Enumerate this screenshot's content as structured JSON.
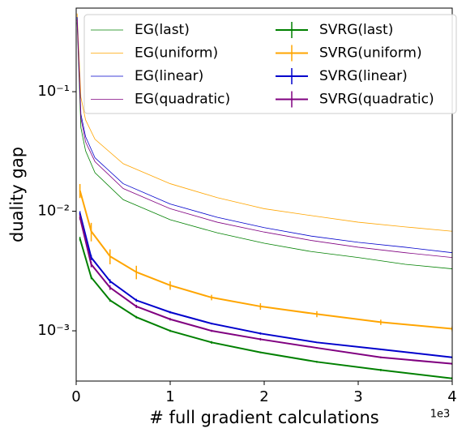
{
  "chart_data": {
    "type": "line",
    "xlabel": "# full gradient calculations",
    "ylabel": "duality gap",
    "x_offset_label": "1e3",
    "xlim": [
      0,
      4
    ],
    "xticks": [
      0,
      1,
      2,
      3,
      4
    ],
    "ylim": [
      0.00038,
      0.5
    ],
    "y_log_scale": true,
    "yticks": [
      {
        "value": 0.1,
        "label": "10⁻¹"
      },
      {
        "value": 0.01,
        "label": "10⁻²"
      },
      {
        "value": 0.001,
        "label": "10⁻³"
      }
    ],
    "legend": "upper right",
    "legend_columns": 2,
    "series": [
      {
        "name": "EG(last)",
        "color": "green",
        "style": "thin",
        "x": [
          0.01,
          0.05,
          0.1,
          0.2,
          0.5,
          1,
          1.5,
          2,
          2.5,
          3,
          3.5,
          4
        ],
        "values": [
          0.38,
          0.05,
          0.032,
          0.021,
          0.0125,
          0.0085,
          0.0066,
          0.0054,
          0.0046,
          0.0041,
          0.0036,
          0.0033
        ]
      },
      {
        "name": "EG(uniform)",
        "color": "orange",
        "style": "thin",
        "x": [
          0.01,
          0.05,
          0.1,
          0.2,
          0.5,
          1,
          1.5,
          2,
          2.5,
          3,
          3.5,
          4
        ],
        "values": [
          0.45,
          0.09,
          0.058,
          0.04,
          0.025,
          0.017,
          0.013,
          0.0105,
          0.0092,
          0.0081,
          0.0074,
          0.0068
        ]
      },
      {
        "name": "EG(linear)",
        "color": "#0000cc",
        "style": "thin",
        "x": [
          0.01,
          0.05,
          0.1,
          0.2,
          0.5,
          1,
          1.5,
          2,
          2.5,
          3,
          3.5,
          4
        ],
        "values": [
          0.42,
          0.065,
          0.042,
          0.028,
          0.017,
          0.0115,
          0.0089,
          0.0073,
          0.0062,
          0.0055,
          0.005,
          0.0045
        ]
      },
      {
        "name": "EG(quadratic)",
        "color": "purple",
        "style": "thin",
        "x": [
          0.01,
          0.05,
          0.1,
          0.2,
          0.5,
          1,
          1.5,
          2,
          2.5,
          3,
          3.5,
          4
        ],
        "values": [
          0.4,
          0.06,
          0.038,
          0.026,
          0.0155,
          0.0105,
          0.0081,
          0.0067,
          0.0057,
          0.005,
          0.0045,
          0.0041
        ]
      },
      {
        "name": "SVRG(last)",
        "color": "green",
        "style": "errorbar",
        "x": [
          0.04,
          0.16,
          0.36,
          0.64,
          1,
          1.44,
          1.96,
          2.56,
          3.24,
          4
        ],
        "values": [
          0.0059,
          0.0028,
          0.0018,
          0.0013,
          0.001,
          0.0008,
          0.00066,
          0.00055,
          0.00047,
          0.0004
        ],
        "errors": [
          0.0002,
          0.0001,
          5e-05,
          3e-05,
          2e-05,
          2e-05,
          1e-05,
          1e-05,
          1e-05,
          1e-05
        ]
      },
      {
        "name": "SVRG(uniform)",
        "color": "orange",
        "style": "errorbar",
        "x": [
          0.04,
          0.16,
          0.36,
          0.64,
          1,
          1.44,
          1.96,
          2.56,
          3.24,
          4
        ],
        "values": [
          0.0149,
          0.0068,
          0.0042,
          0.0031,
          0.0024,
          0.0019,
          0.0016,
          0.00138,
          0.00118,
          0.00104
        ],
        "errors": [
          0.002,
          0.0012,
          0.0006,
          0.0004,
          0.0002,
          0.0001,
          0.0001,
          8e-05,
          6e-05,
          5e-05
        ]
      },
      {
        "name": "SVRG(linear)",
        "color": "#0000cc",
        "style": "errorbar",
        "x": [
          0.04,
          0.16,
          0.36,
          0.64,
          1,
          1.44,
          1.96,
          2.56,
          3.24,
          4
        ],
        "values": [
          0.0096,
          0.0041,
          0.0026,
          0.0018,
          0.00143,
          0.00115,
          0.00095,
          0.0008,
          0.0007,
          0.0006
        ],
        "errors": [
          0.0004,
          0.0002,
          0.0001,
          5e-05,
          3e-05,
          2e-05,
          2e-05,
          1e-05,
          1e-05,
          1e-05
        ]
      },
      {
        "name": "SVRG(quadratic)",
        "color": "purple",
        "style": "errorbar",
        "x": [
          0.04,
          0.16,
          0.36,
          0.64,
          1,
          1.44,
          1.96,
          2.56,
          3.24,
          4
        ],
        "values": [
          0.0089,
          0.0036,
          0.0023,
          0.0016,
          0.00125,
          0.001,
          0.00085,
          0.00072,
          0.0006,
          0.00053
        ],
        "errors": [
          0.0004,
          0.0002,
          0.0001,
          5e-05,
          3e-05,
          2e-05,
          2e-05,
          1e-05,
          1e-05,
          1e-05
        ]
      }
    ]
  }
}
